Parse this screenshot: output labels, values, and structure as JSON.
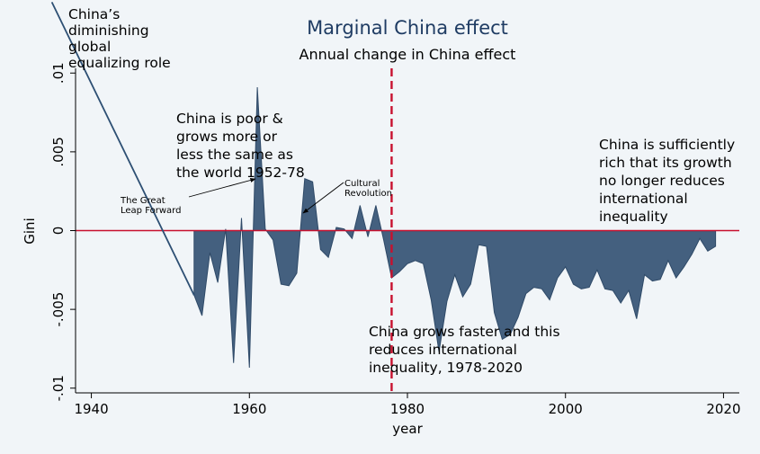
{
  "chart_data": {
    "type": "area",
    "title": "Marginal China effect",
    "subtitle": "Annual change in China effect",
    "xlabel": "year",
    "ylabel": "Gini",
    "xlim": [
      1938,
      2022
    ],
    "ylim": [
      -0.0103,
      0.0103
    ],
    "x_ticks": [
      "1940",
      "1960",
      "1980",
      "2000",
      "2020"
    ],
    "y_ticks": [
      "-.01",
      "-.005",
      "0",
      ".005",
      ".01"
    ],
    "x_tick_values": [
      1940,
      1960,
      1980,
      2000,
      2020
    ],
    "y_tick_values": [
      -0.01,
      -0.005,
      0,
      0.005,
      0.01
    ],
    "vline_x": 1978,
    "hline_y": 0,
    "series": [
      {
        "x": [
          1953,
          1954,
          1955,
          1956,
          1957,
          1958,
          1959,
          1960,
          1961,
          1962,
          1963,
          1964,
          1965,
          1966,
          1967,
          1968,
          1969,
          1970,
          1971,
          1972,
          1973,
          1974,
          1975,
          1976,
          1977,
          1978,
          1979,
          1980,
          1981,
          1982,
          1983,
          1984,
          1985,
          1986,
          1987,
          1988,
          1989,
          1990,
          1991,
          1992,
          1993,
          1994,
          1995,
          1996,
          1997,
          1998,
          1999,
          2000,
          2001,
          2002,
          2003,
          2004,
          2005,
          2006,
          2007,
          2008,
          2009,
          2010,
          2011,
          2012,
          2013,
          2014,
          2015,
          2016,
          2017,
          2018,
          2019
        ],
        "y": [
          -0.0041,
          -0.0054,
          -0.0014,
          -0.0033,
          0.0001,
          -0.0084,
          0.0008,
          -0.0087,
          0.0091,
          0.0001,
          -0.0006,
          -0.0034,
          -0.0035,
          -0.0027,
          0.0033,
          0.0031,
          -0.0012,
          -0.0017,
          0.0002,
          0.0001,
          -0.0005,
          0.0016,
          -0.0004,
          0.0016,
          -0.0006,
          -0.003,
          -0.0026,
          -0.0021,
          -0.0019,
          -0.0021,
          -0.0044,
          -0.0077,
          -0.0045,
          -0.0028,
          -0.0042,
          -0.0034,
          -0.0009,
          -0.001,
          -0.0052,
          -0.0069,
          -0.0066,
          -0.0055,
          -0.004,
          -0.0036,
          -0.0037,
          -0.0044,
          -0.003,
          -0.0023,
          -0.0034,
          -0.0037,
          -0.0036,
          -0.0025,
          -0.0037,
          -0.0038,
          -0.0046,
          -0.0038,
          -0.0056,
          -0.0028,
          -0.0032,
          -0.0031,
          -0.0019,
          -0.003,
          -0.0023,
          -0.0015,
          -0.0005,
          -0.0013,
          -0.001
        ]
      }
    ],
    "trend_line": {
      "x": [
        1935,
        1953
      ],
      "y": [
        0.0145,
        -0.0041
      ]
    },
    "colors": {
      "fill": "#44607f",
      "baseline": "#c8102e",
      "vline": "#c8102e",
      "trend": "#2d4f73",
      "title": "#1f3c63"
    },
    "annotations": {
      "top_left": [
        "China’s",
        "diminishing",
        "global",
        "equalizing role"
      ],
      "poor": [
        "China is poor &",
        "grows more or",
        "less the same as",
        "the world 1952-78"
      ],
      "great_leap": [
        "The Great",
        "Leap Forward"
      ],
      "cultural": [
        "Cultural",
        "Revolution"
      ],
      "rich": [
        "China is sufficiently",
        "rich that its growth",
        "no longer reduces",
        "international",
        "inequality"
      ],
      "faster": [
        "China grows faster and this",
        "reduces international",
        "inequality, 1978-2020"
      ]
    },
    "grid": false,
    "legend": "none"
  }
}
